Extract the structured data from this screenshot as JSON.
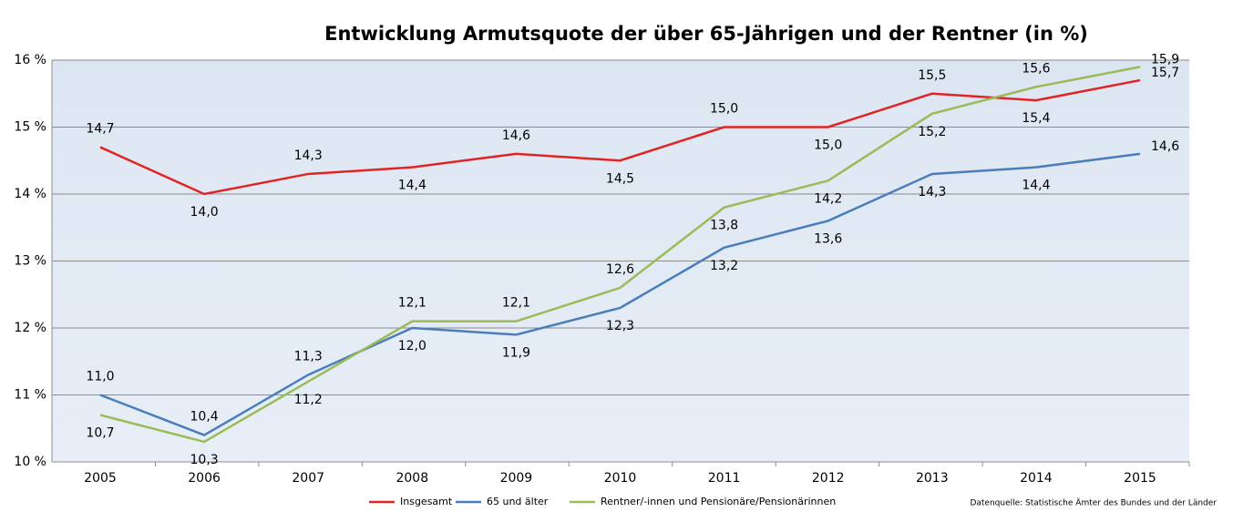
{
  "chart_data": {
    "type": "line",
    "title": "Entwicklung Armutsquote der über 65-Jährigen und der Rentner (in %)",
    "categories": [
      "2005",
      "2006",
      "2007",
      "2008",
      "2009",
      "2010",
      "2011",
      "2012",
      "2013",
      "2014",
      "2015"
    ],
    "series": [
      {
        "name": "Insgesamt",
        "color": "#e02424",
        "values": [
          14.7,
          14.0,
          14.3,
          14.4,
          14.6,
          14.5,
          15.0,
          15.0,
          15.5,
          15.4,
          15.7
        ],
        "value_labels": [
          "14,7",
          "14,0",
          "14,3",
          "14,4",
          "14,6",
          "14,5",
          "15,0",
          "15,0",
          "15,5",
          "15,4",
          "15,7"
        ]
      },
      {
        "name": "65 und älter",
        "color": "#4a7ebb",
        "values": [
          11.0,
          10.4,
          11.3,
          12.0,
          11.9,
          12.3,
          13.2,
          13.6,
          14.3,
          14.4,
          14.6
        ],
        "value_labels": [
          "11,0",
          "10,4",
          "11,3",
          "12,0",
          "11,9",
          "12,3",
          "13,2",
          "13,6",
          "14,3",
          "14,4",
          "14,6"
        ]
      },
      {
        "name": "Rentner/-innen und Pensionäre/Pensionärinnen",
        "color": "#9bbb59",
        "values": [
          10.7,
          10.3,
          11.2,
          12.1,
          12.1,
          12.6,
          13.8,
          14.2,
          15.2,
          15.6,
          15.9
        ],
        "value_labels": [
          "10,7",
          "10,3",
          "11,2",
          "12,1",
          "12,1",
          "12,6",
          "13,8",
          "14,2",
          "15,2",
          "15,6",
          "15,9"
        ]
      }
    ],
    "ylim": [
      10,
      16
    ],
    "yticks": [
      {
        "value": 10,
        "label": "10 %"
      },
      {
        "value": 11,
        "label": "11 %"
      },
      {
        "value": 12,
        "label": "12 %"
      },
      {
        "value": 13,
        "label": "13 %"
      },
      {
        "value": 14,
        "label": "14 %"
      },
      {
        "value": 15,
        "label": "15 %"
      },
      {
        "value": 16,
        "label": "16 %"
      }
    ],
    "grid": true,
    "legend": "bottom",
    "source": "Datenquelle:  Statistische Ämter des Bundes und der Länder"
  }
}
